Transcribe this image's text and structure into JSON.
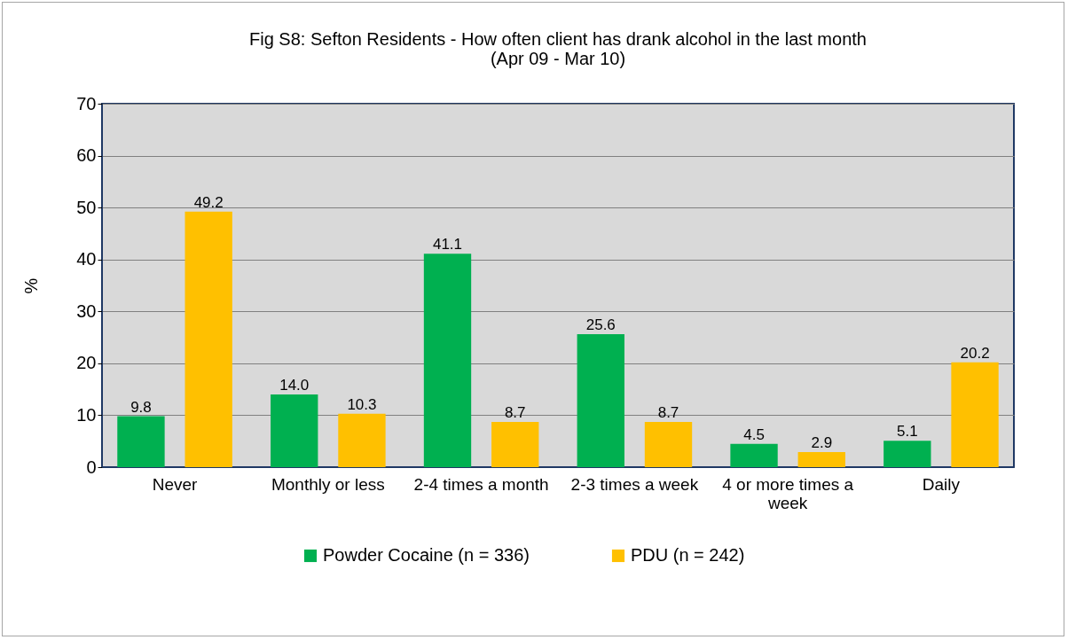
{
  "chart_data": {
    "type": "bar",
    "title": [
      "Fig S8: Sefton  Residents - How often client has drank alcohol in the last month",
      "(Apr 09 - Mar 10)"
    ],
    "ylabel": "%",
    "categories": [
      "Never",
      "Monthly or less",
      "2-4 times a month",
      "2-3 times a  week",
      "4 or more times a week",
      "Daily"
    ],
    "series": [
      {
        "name": "Powder Cocaine (n = 336)",
        "color": "#00b050",
        "values": [
          9.8,
          14.0,
          41.1,
          25.6,
          4.5,
          5.1
        ],
        "value_labels": [
          "9.8",
          "14.0",
          "41.1",
          "25.6",
          "4.5",
          "5.1"
        ]
      },
      {
        "name": "PDU (n = 242)",
        "color": "#ffc000",
        "values": [
          49.2,
          10.3,
          8.7,
          8.7,
          2.9,
          20.2
        ],
        "value_labels": [
          "49.2",
          "10.3",
          "8.7",
          "8.7",
          "2.9",
          "20.2"
        ]
      }
    ],
    "ylim": [
      0,
      70
    ],
    "yticks": [
      0,
      10,
      20,
      30,
      40,
      50,
      60,
      70
    ],
    "grid": "y",
    "legend": "bottom"
  }
}
